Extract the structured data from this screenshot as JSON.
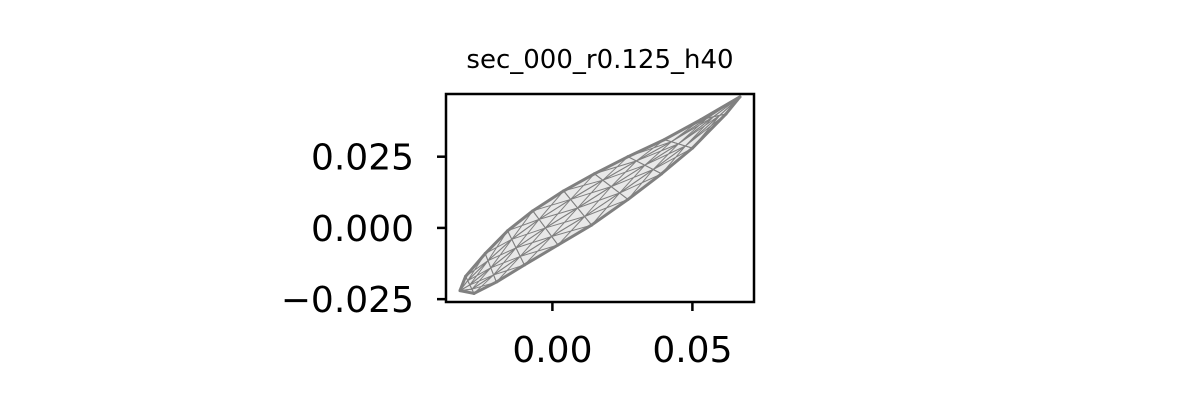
{
  "chart_data": {
    "type": "scatter",
    "title": "sec_000_r0.125_h40",
    "xlabel": "",
    "ylabel": "",
    "xlim": [
      -0.038,
      0.072
    ],
    "ylim": [
      -0.026,
      0.047
    ],
    "x_ticks": [
      {
        "value": 0.0,
        "label": "0.00"
      },
      {
        "value": 0.05,
        "label": "0.05"
      }
    ],
    "y_ticks": [
      {
        "value": -0.025,
        "label": "−0.025"
      },
      {
        "value": 0.0,
        "label": "0.000"
      },
      {
        "value": 0.025,
        "label": "0.025"
      }
    ],
    "grid": false,
    "legend": "none",
    "mesh_color": "#808080",
    "series": [
      {
        "values": [
          {
            "x": -0.033,
            "y": -0.022
          },
          {
            "x": -0.031,
            "y": -0.017
          },
          {
            "x": -0.024,
            "y": -0.009
          },
          {
            "x": -0.016,
            "y": -0.001
          },
          {
            "x": -0.007,
            "y": 0.006
          },
          {
            "x": 0.004,
            "y": 0.013
          },
          {
            "x": 0.015,
            "y": 0.019
          },
          {
            "x": 0.027,
            "y": 0.025
          },
          {
            "x": 0.04,
            "y": 0.031
          },
          {
            "x": 0.053,
            "y": 0.038
          },
          {
            "x": 0.067,
            "y": 0.046
          },
          {
            "x": 0.062,
            "y": 0.04
          },
          {
            "x": 0.05,
            "y": 0.028
          },
          {
            "x": 0.039,
            "y": 0.019
          },
          {
            "x": 0.027,
            "y": 0.01
          },
          {
            "x": 0.014,
            "y": 0.001
          },
          {
            "x": 0.002,
            "y": -0.006
          },
          {
            "x": -0.01,
            "y": -0.013
          },
          {
            "x": -0.02,
            "y": -0.019
          },
          {
            "x": -0.028,
            "y": -0.023
          }
        ]
      }
    ]
  }
}
